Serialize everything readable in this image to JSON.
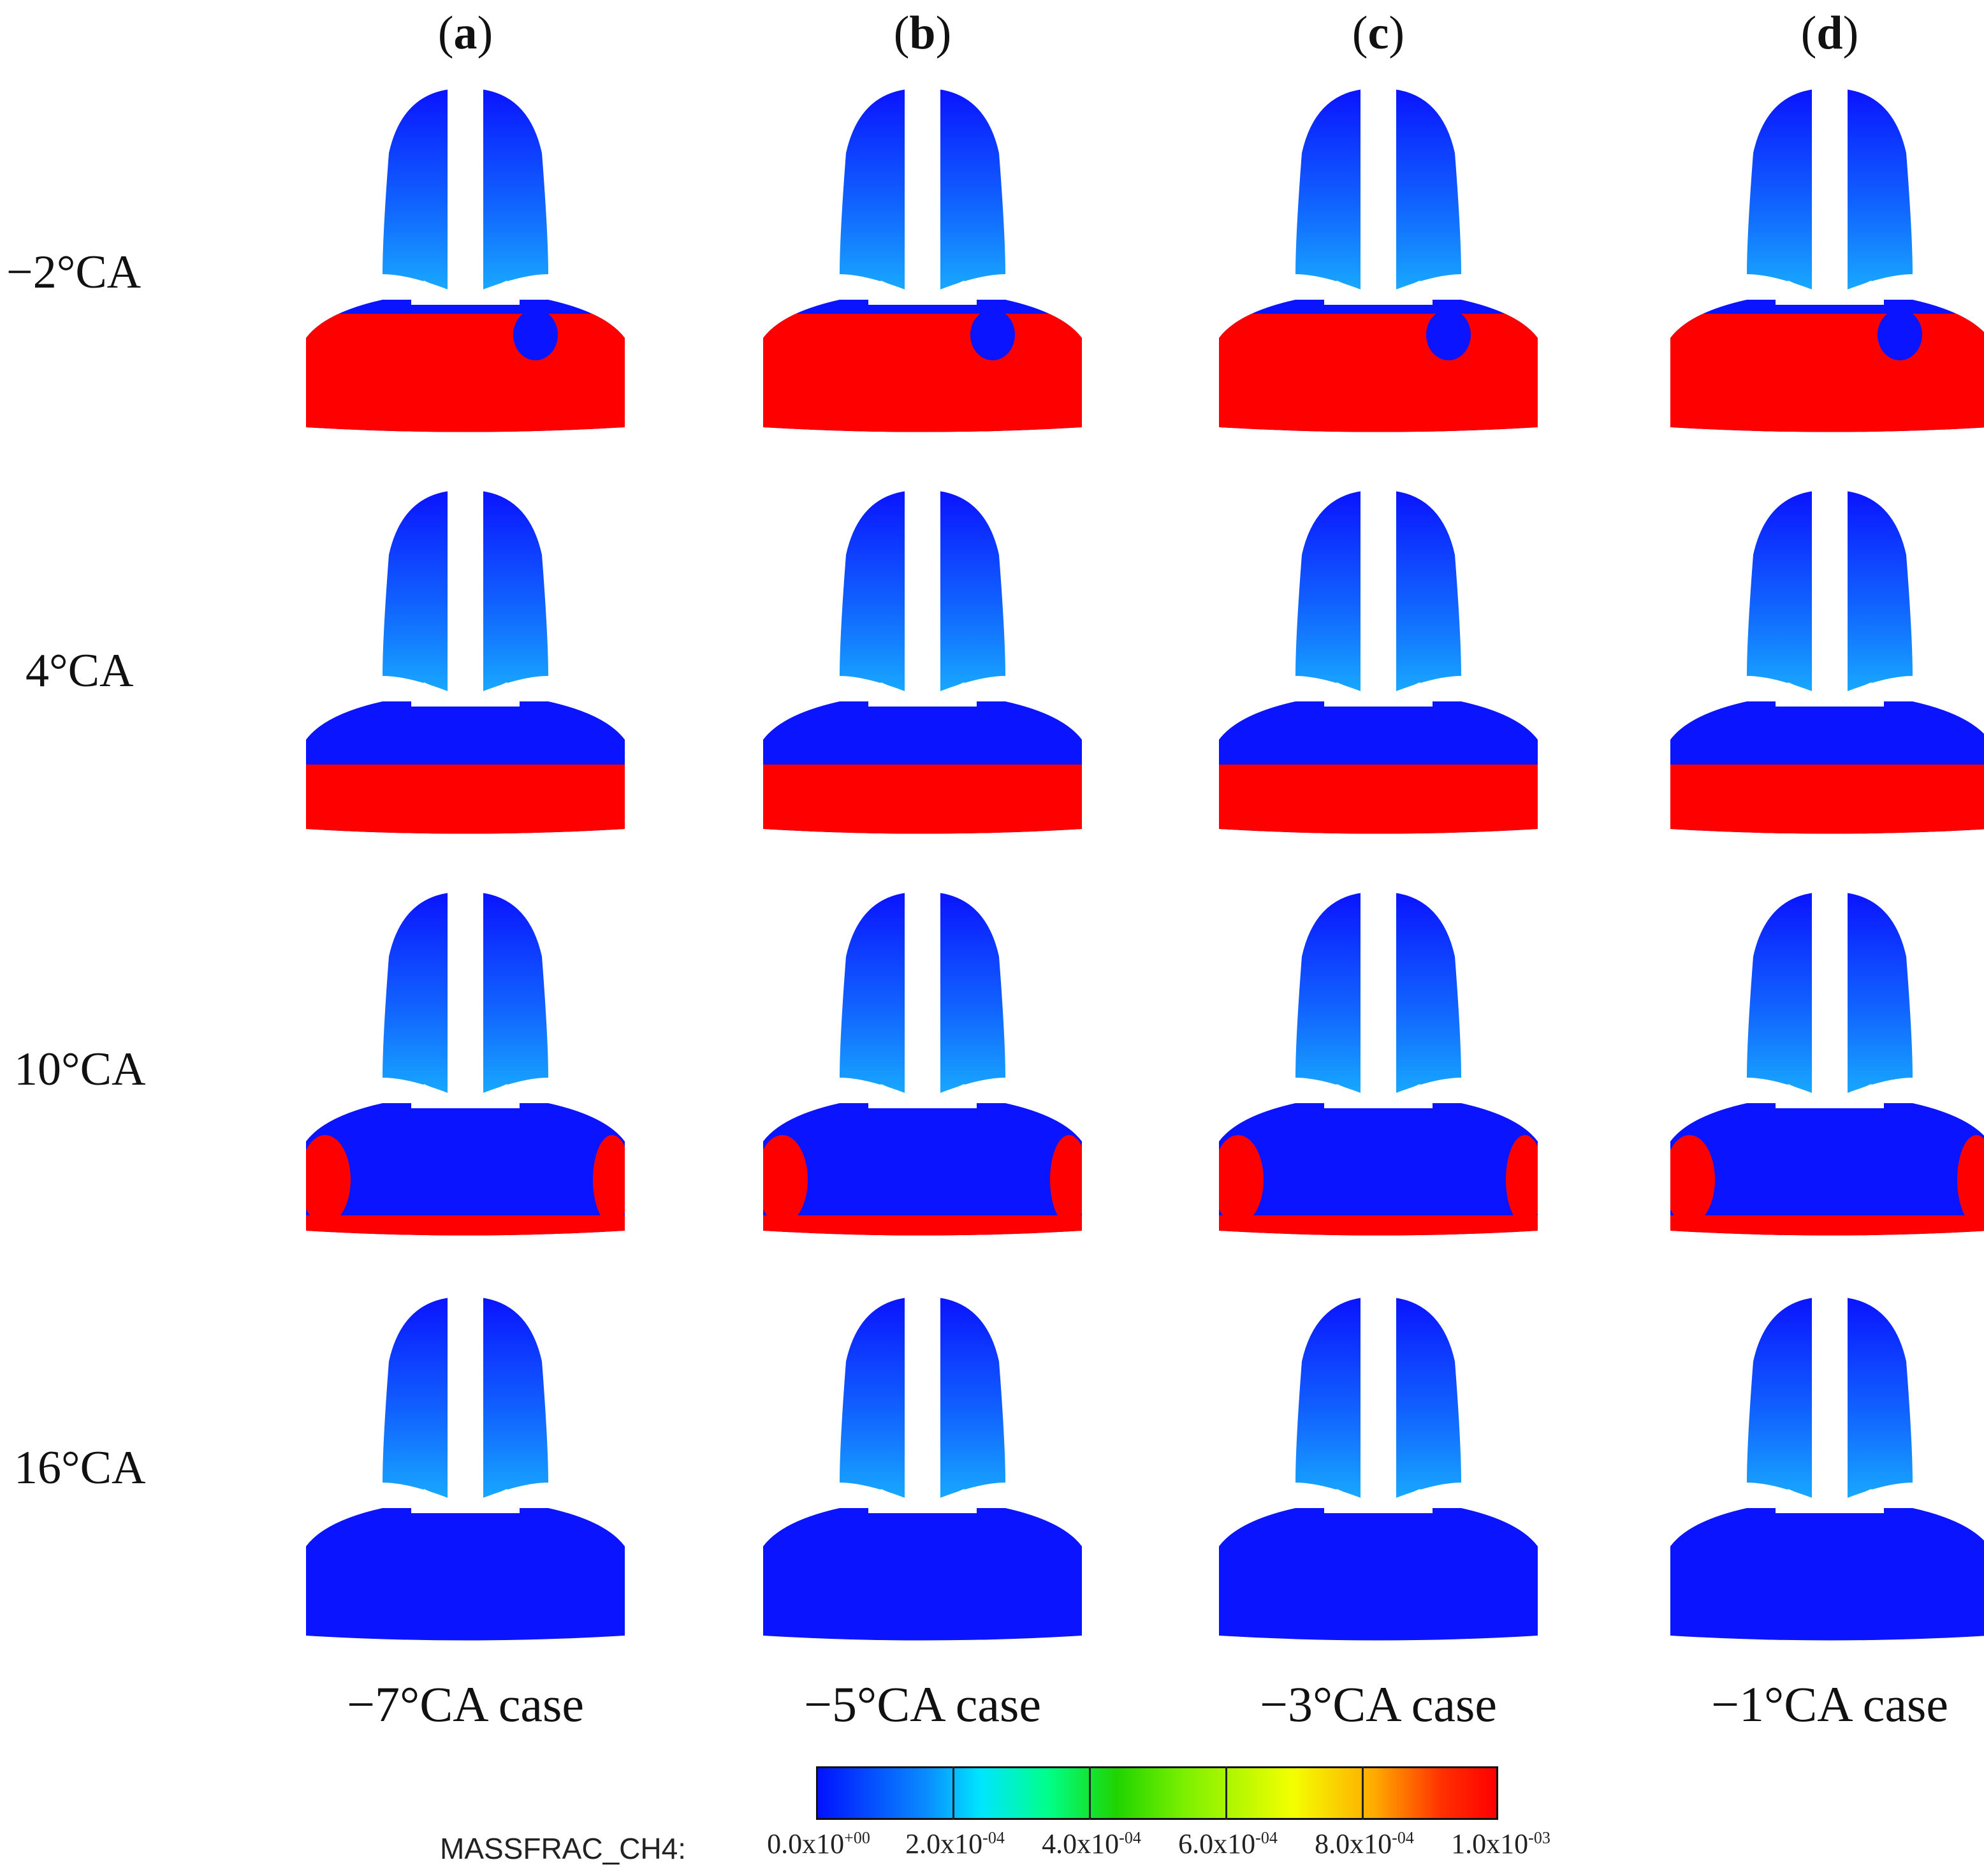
{
  "columns": [
    {
      "letter": "a",
      "case": "−7°CA case"
    },
    {
      "letter": "b",
      "case": "−5°CA case"
    },
    {
      "letter": "c",
      "case": "−3°CA case"
    },
    {
      "letter": "d",
      "case": "−1°CA case"
    }
  ],
  "rows": [
    {
      "label": "−2°CA",
      "red_fraction": 0.9
    },
    {
      "label": "4°CA",
      "red_fraction": 0.55
    },
    {
      "label": "10°CA",
      "red_fraction": 0.2
    },
    {
      "label": "16°CA",
      "red_fraction": 0.03
    }
  ],
  "colorbar": {
    "variable": "MASSFRAC_CH4:",
    "ticks": [
      {
        "mant": "0.0x10",
        "exp": "+00"
      },
      {
        "mant": "2.0x10",
        "exp": "-04"
      },
      {
        "mant": "4.0x10",
        "exp": "-04"
      },
      {
        "mant": "6.0x10",
        "exp": "-04"
      },
      {
        "mant": "8.0x10",
        "exp": "-04"
      },
      {
        "mant": "1.0x10",
        "exp": "-03"
      }
    ]
  },
  "colors": {
    "low": "#0a14ff",
    "high": "#ff0000",
    "valve_fill": "#ffffff"
  }
}
